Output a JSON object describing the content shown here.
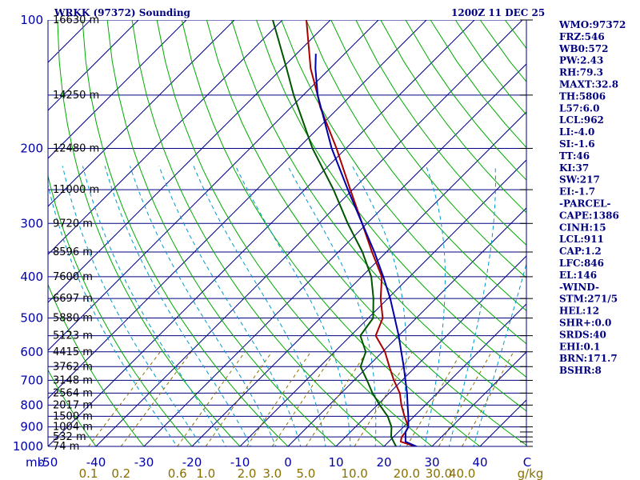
{
  "header": {
    "title": "WRKK (97372) Sounding",
    "time": "1200Z 11 DEC 25"
  },
  "colors": {
    "frame": "#000080",
    "isobar": "#000080",
    "isotherm": "#000080",
    "dry_adiabat": "#00aa00",
    "moist_adiabat": "#0099cc",
    "mixing_ratio": "#8a7000",
    "temperature": "#aa0000",
    "dewpoint": "#005500",
    "parcel": "#0000aa",
    "wind": "#000000"
  },
  "axes": {
    "corner_label": "mb",
    "pressure_labels": [
      "100",
      "200",
      "300",
      "400",
      "500",
      "600",
      "700",
      "800",
      "900",
      "1000"
    ],
    "temperature_labels": [
      "-50",
      "-40",
      "-30",
      "-20",
      "-10",
      "0",
      "10",
      "20",
      "30",
      "40",
      "C"
    ],
    "mixing_ratio_labels": [
      "0.1",
      "0.2",
      "0.6",
      "1.0",
      "2.0",
      "3.0",
      "5.0",
      "10.0",
      "20.0",
      "30.0",
      "40.0",
      "g/kg"
    ]
  },
  "indices": [
    "WMO:97372",
    "FRZ:546",
    "WB0:572",
    "PW:2.43",
    "RH:79.3",
    "MAXT:32.8",
    "TH:5806",
    "L57:6.0",
    "LCL:962",
    "LI:-4.0",
    "SI:-1.6",
    "TT:46",
    "KI:37",
    "SW:217",
    "EI:-1.7",
    "-PARCEL-",
    "CAPE:1386",
    "CINH:15",
    "LCL:911",
    "CAP:1.2",
    "LFC:846",
    "EL:146",
    "-WIND-",
    "STM:271/5",
    "HEL:12",
    "SHR+:0.0",
    "SRDS:40",
    "EHI:0.1",
    "BRN:171.7",
    "BSHR:8"
  ],
  "chart_data": {
    "type": "line",
    "title": "WRKK (97372) Sounding",
    "subtitle": "1200Z 11 DEC 25",
    "x_axis": "temperature (C), skewed",
    "y_axis": "pressure (mb), log scale",
    "xlim": [
      -50,
      50
    ],
    "ylim": [
      1000,
      100
    ],
    "y_scale": "log",
    "skew": "isotherms skewed 45 degrees",
    "grid": true,
    "height_levels": [
      {
        "p": 100,
        "label": "16630 m"
      },
      {
        "p": 150,
        "label": "14250 m"
      },
      {
        "p": 200,
        "label": "12480 m"
      },
      {
        "p": 250,
        "label": "11000 m"
      },
      {
        "p": 300,
        "label": "9720 m"
      },
      {
        "p": 350,
        "label": "8596 m"
      },
      {
        "p": 400,
        "label": "7600 m"
      },
      {
        "p": 450,
        "label": "6697 m"
      },
      {
        "p": 500,
        "label": "5880 m"
      },
      {
        "p": 550,
        "label": "5123 m"
      },
      {
        "p": 600,
        "label": "4415 m"
      },
      {
        "p": 650,
        "label": "3762 m"
      },
      {
        "p": 700,
        "label": "3148 m"
      },
      {
        "p": 750,
        "label": "2564 m"
      },
      {
        "p": 800,
        "label": "2017 m"
      },
      {
        "p": 850,
        "label": "1500 m"
      },
      {
        "p": 900,
        "label": "1004 m"
      },
      {
        "p": 950,
        "label": "532 m"
      },
      {
        "p": 1000,
        "label": "74 m"
      }
    ],
    "series": [
      {
        "key": "temperature",
        "points": [
          {
            "p": 1000,
            "t": 25.5
          },
          {
            "p": 1006,
            "t": 27.5
          },
          {
            "p": 975,
            "t": 22.5
          },
          {
            "p": 950,
            "t": 21.7
          },
          {
            "p": 925,
            "t": 21.5
          },
          {
            "p": 900,
            "t": 21.0
          },
          {
            "p": 850,
            "t": 18.0
          },
          {
            "p": 800,
            "t": 15.0
          },
          {
            "p": 750,
            "t": 12.2
          },
          {
            "p": 700,
            "t": 8.3
          },
          {
            "p": 650,
            "t": 4.5
          },
          {
            "p": 600,
            "t": 0.5
          },
          {
            "p": 550,
            "t": -4.8
          },
          {
            "p": 500,
            "t": -7.0
          },
          {
            "p": 450,
            "t": -11.5
          },
          {
            "p": 400,
            "t": -15.8
          },
          {
            "p": 350,
            "t": -23.0
          },
          {
            "p": 300,
            "t": -31.0
          },
          {
            "p": 250,
            "t": -40.5
          },
          {
            "p": 200,
            "t": -52.0
          },
          {
            "p": 160,
            "t": -64.0
          },
          {
            "p": 150,
            "t": -67.0
          },
          {
            "p": 130,
            "t": -74.0
          },
          {
            "p": 100,
            "t": -85.0
          }
        ]
      },
      {
        "key": "dewpoint",
        "points": [
          {
            "p": 1000,
            "t": 22.5
          },
          {
            "p": 950,
            "t": 19.5
          },
          {
            "p": 900,
            "t": 17.5
          },
          {
            "p": 850,
            "t": 14.5
          },
          {
            "p": 800,
            "t": 10.5
          },
          {
            "p": 750,
            "t": 6.5
          },
          {
            "p": 700,
            "t": 2.7
          },
          {
            "p": 650,
            "t": -1.5
          },
          {
            "p": 600,
            "t": -3.5
          },
          {
            "p": 550,
            "t": -8.0
          },
          {
            "p": 500,
            "t": -9.0
          },
          {
            "p": 450,
            "t": -13.0
          },
          {
            "p": 400,
            "t": -18.0
          },
          {
            "p": 350,
            "t": -25.0
          },
          {
            "p": 300,
            "t": -34.0
          },
          {
            "p": 250,
            "t": -44.0
          },
          {
            "p": 200,
            "t": -57.0
          },
          {
            "p": 150,
            "t": -72.0
          },
          {
            "p": 130,
            "t": -79.0
          },
          {
            "p": 100,
            "t": -92.0
          }
        ]
      },
      {
        "key": "parcel",
        "points": [
          {
            "p": 1006,
            "t": 27.5
          },
          {
            "p": 975,
            "t": 23.5
          },
          {
            "p": 950,
            "t": 22.5
          },
          {
            "p": 925,
            "t": 21.5
          },
          {
            "p": 900,
            "t": 21.0
          },
          {
            "p": 850,
            "t": 18.8
          },
          {
            "p": 800,
            "t": 16.3
          },
          {
            "p": 750,
            "t": 13.7
          },
          {
            "p": 700,
            "t": 10.7
          },
          {
            "p": 650,
            "t": 7.5
          },
          {
            "p": 600,
            "t": 3.9
          },
          {
            "p": 550,
            "t": 0.0
          },
          {
            "p": 500,
            "t": -4.5
          },
          {
            "p": 450,
            "t": -9.5
          },
          {
            "p": 400,
            "t": -15.5
          },
          {
            "p": 350,
            "t": -22.5
          },
          {
            "p": 300,
            "t": -31.0
          },
          {
            "p": 250,
            "t": -41.0
          },
          {
            "p": 200,
            "t": -53.0
          },
          {
            "p": 150,
            "t": -67.0
          },
          {
            "p": 130,
            "t": -73.0
          },
          {
            "p": 120,
            "t": -76.0
          }
        ]
      }
    ],
    "wind_levels_mb": [
      1000,
      975,
      950,
      925,
      900,
      850,
      800,
      750,
      700,
      650,
      600,
      550,
      500,
      450,
      400,
      350,
      300,
      250,
      200,
      150,
      100
    ]
  }
}
